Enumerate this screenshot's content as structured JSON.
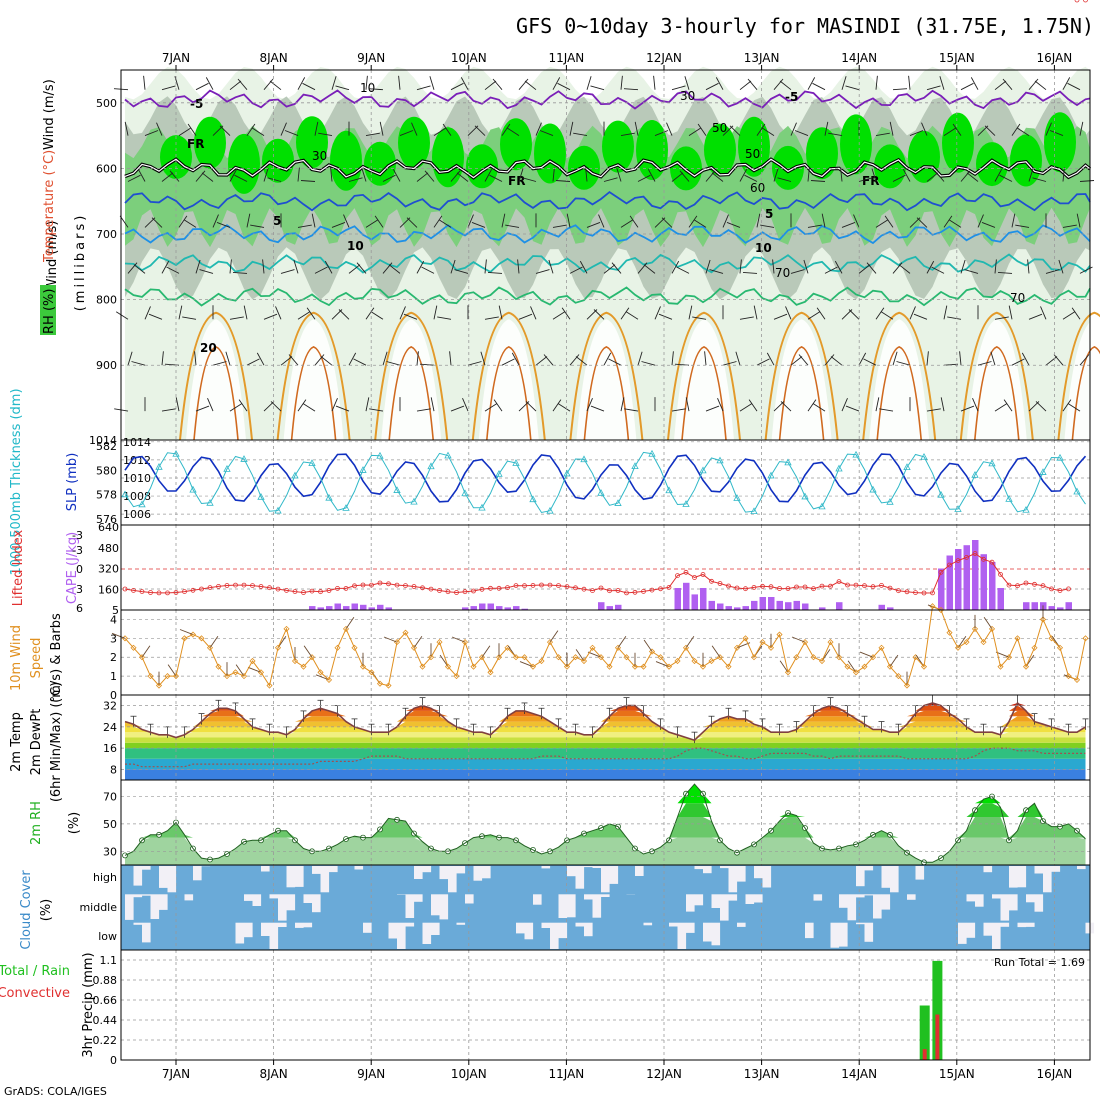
{
  "header": {
    "title": "GFS 0~10day 3-hourly for MASINDI (31.75E, 1.75N)",
    "credit": "GrADS: COLA/IGES"
  },
  "colors": {
    "rh_green": "#00e000",
    "rh_mid": "#7ccf7c",
    "rh_grey": "#b9c9b9",
    "rh_light": "#e8f3e6",
    "freezing": "#000000",
    "iso_minus5": "#7a1fb8",
    "iso_5": "#1f4fd0",
    "iso_10": "#1e90e6",
    "iso_15": "#20b8b0",
    "iso_20": "#28b870",
    "iso_warm": "#e39a2a",
    "slp_line": "#1030c0",
    "thickness_line": "#30b8c8",
    "lifted_index": "#e03030",
    "cape_bar": "#b060f0",
    "wind_speed": "#e09020",
    "temp_line": "#804040",
    "rh2m_fill": "#60c060",
    "cloud_blue": "#6aaad8",
    "cloud_light": "#f2f0f6",
    "precip_total": "#20c020",
    "precip_conv": "#e03030"
  },
  "chart_data": [
    {
      "type": "heatmap",
      "panel": "upper-air",
      "ylabel_parts": [
        "Wind (m/s)",
        "Temperature (°C)",
        "RH (%)"
      ],
      "ylabel_sub": "(millibars)",
      "y_ticks": [
        "500",
        "600",
        "700",
        "800",
        "900",
        "1014"
      ],
      "ylim": [
        1014,
        450
      ],
      "x_labels": [
        "7JAN",
        "8JAN",
        "9JAN",
        "10JAN",
        "11JAN",
        "12JAN",
        "13JAN",
        "14JAN",
        "15JAN",
        "16JAN"
      ],
      "contour_labels": [
        "-5",
        "-5",
        "FR",
        "FR",
        "FR",
        "5",
        "5",
        "10",
        "10",
        "20",
        "10",
        "30",
        "50",
        "50",
        "60",
        "30",
        "70",
        "70"
      ],
      "isotherms": [
        {
          "temp": -5,
          "level_mb": 495
        },
        {
          "temp": 0,
          "level_mb": 600
        },
        {
          "temp": 5,
          "level_mb": 650
        },
        {
          "temp": 10,
          "level_mb": 700
        },
        {
          "temp": 15,
          "level_mb": 745
        },
        {
          "temp": 20,
          "level_mb": 795
        }
      ]
    },
    {
      "type": "line",
      "panel": "slp-thickness",
      "ylabel_left": "1000-500mb Thickness (dm)",
      "ylabel_right": "SLP (mb)",
      "left_ticks": [
        "582",
        "580",
        "578",
        "576"
      ],
      "right_ticks": [
        "1014",
        "1012",
        "1010",
        "1008",
        "1006"
      ],
      "left_lim": [
        575.5,
        582.5
      ],
      "right_lim": [
        1004.8,
        1014.2
      ],
      "series": [
        {
          "axis": "right",
          "base": 1010,
          "amp": 2.2,
          "note": "SLP"
        },
        {
          "axis": "left",
          "base": 579,
          "amp": 2.2,
          "note": "thickness"
        }
      ]
    },
    {
      "type": "bar",
      "panel": "lifted-index-cape",
      "ylabel_left": "Lifted Index",
      "ylabel_right": "CAPE (J/kg)",
      "left_ticks": [
        "-3",
        "-3",
        "0",
        "3",
        "6"
      ],
      "right_ticks": [
        "640",
        "480",
        "320",
        "160",
        "5"
      ],
      "cape_lim": [
        0,
        640
      ],
      "cape_values": [
        0,
        0,
        0,
        0,
        0,
        0,
        0,
        0,
        0,
        0,
        0,
        0,
        0,
        0,
        0,
        0,
        0,
        0,
        0,
        0,
        0,
        0,
        30,
        20,
        30,
        50,
        30,
        50,
        40,
        20,
        40,
        20,
        0,
        0,
        0,
        0,
        0,
        0,
        0,
        0,
        20,
        30,
        50,
        50,
        30,
        20,
        30,
        10,
        0,
        0,
        0,
        0,
        0,
        0,
        0,
        0,
        60,
        30,
        40,
        0,
        0,
        0,
        0,
        0,
        0,
        170,
        210,
        120,
        170,
        70,
        50,
        30,
        20,
        30,
        70,
        100,
        100,
        70,
        60,
        70,
        50,
        0,
        20,
        0,
        60,
        0,
        0,
        0,
        0,
        40,
        20,
        0,
        0,
        0,
        0,
        0,
        320,
        420,
        470,
        500,
        540,
        430,
        370,
        170,
        0,
        0,
        60,
        60,
        60,
        30,
        20,
        60
      ]
    },
    {
      "type": "line",
      "panel": "wind-10m",
      "ylabel": "10m Wind",
      "ylabel_2": "Speed",
      "ylabel_3": "(m/s) & Barbs",
      "y_ticks": [
        "4",
        "3",
        "2",
        "1",
        "0"
      ],
      "ylim": [
        0,
        4.5
      ],
      "series": [
        {
          "name": "",
          "values": [
            3,
            2.5,
            2,
            1,
            0.5,
            1,
            1,
            3,
            3.2,
            3,
            2.5,
            1.5,
            1,
            1.2,
            1,
            1.8,
            1.2,
            0.5,
            2.5,
            3.5,
            1.8,
            1.5,
            2,
            1.2,
            0.8,
            2.5,
            3.5,
            2.5,
            1.5,
            1.2,
            0.6,
            0.5,
            2.8,
            3.3,
            2.5,
            1.5,
            2,
            2.8,
            1.5,
            1,
            2.8,
            1.5,
            2,
            1.2,
            2,
            2.5,
            2,
            2,
            1.5,
            1.8,
            2.8,
            2,
            1.5,
            2,
            1.8,
            2.5,
            2,
            1.5,
            2.5,
            2,
            1.5,
            1.5,
            2.3,
            2,
            1.5,
            1.8,
            2.5,
            1.8,
            1.5,
            1.8,
            2,
            1.5,
            2.5,
            3,
            2,
            2.8,
            2.5,
            3.2,
            1.2,
            2,
            2.8,
            2,
            1.8,
            2.8,
            2,
            1.5,
            1.2,
            1.5,
            2,
            2.5,
            1.5,
            1,
            0.5,
            2,
            1.5,
            4.7,
            4.5,
            3.3,
            2.5,
            2.8,
            3.5,
            2.8,
            3.5,
            1.5,
            2,
            3,
            1.5,
            2.5,
            4,
            3,
            2.5,
            1,
            0.8,
            3
          ]
        }
      ]
    },
    {
      "type": "area",
      "panel": "temperature-2m",
      "ylabel": "2m Temp",
      "ylabel_2": "2m DewPt",
      "ylabel_3": "(6hr Min/Max) (°C)",
      "y_ticks": [
        "32",
        "24",
        "16",
        "8"
      ],
      "ylim": [
        4,
        36
      ],
      "temp_bands": [
        4,
        8,
        12,
        16,
        18,
        20,
        22,
        24,
        26,
        28,
        30,
        32,
        34,
        36
      ],
      "series": [
        {
          "name": "",
          "values": [
            26,
            25,
            23,
            22,
            21,
            21,
            20,
            21,
            23,
            26,
            29,
            31,
            31,
            30,
            27,
            24,
            23,
            22,
            22,
            21,
            23,
            27,
            30,
            31,
            30,
            29,
            26,
            24,
            23,
            22,
            22,
            22,
            24,
            28,
            31,
            32,
            31,
            29,
            26,
            24,
            23,
            22,
            22,
            21,
            24,
            28,
            30,
            30,
            29,
            28,
            26,
            24,
            22,
            22,
            21,
            21,
            24,
            28,
            31,
            32,
            32,
            29,
            26,
            24,
            22,
            21,
            20,
            19,
            22,
            25,
            27,
            28,
            27,
            27,
            25,
            24,
            22,
            22,
            22,
            23,
            26,
            29,
            31,
            32,
            31,
            29,
            27,
            25,
            23,
            23,
            22,
            22,
            25,
            29,
            32,
            33,
            32,
            29,
            27,
            24,
            22,
            22,
            22,
            21,
            26,
            33,
            30,
            26,
            25,
            24,
            23,
            22,
            22,
            24
          ]
        },
        {
          "name": "",
          "values": [
            10,
            10,
            9,
            9,
            9,
            9,
            9,
            9,
            10,
            10,
            10,
            10,
            10,
            10,
            10,
            10,
            10,
            10,
            10,
            10,
            10,
            10,
            10,
            11,
            11,
            11,
            11,
            11,
            12,
            13,
            13,
            13,
            13,
            12,
            12,
            12,
            12,
            12,
            12,
            12,
            12,
            12,
            12,
            12,
            12,
            12,
            12,
            12,
            12,
            13,
            13,
            13,
            12,
            12,
            12,
            12,
            12,
            12,
            12,
            12,
            12,
            12,
            12,
            12,
            12,
            13,
            15,
            16,
            16,
            15,
            14,
            13,
            13,
            12,
            12,
            13,
            14,
            14,
            14,
            14,
            14,
            13,
            13,
            12,
            13,
            13,
            13,
            13,
            13,
            13,
            13,
            13,
            12,
            12,
            12,
            12,
            12,
            12,
            12,
            12,
            13,
            15,
            16,
            16,
            16,
            15,
            15,
            15,
            14,
            14,
            14,
            14,
            14,
            14
          ]
        }
      ]
    },
    {
      "type": "area",
      "panel": "rh-2m",
      "ylabel": "2m RH",
      "ylabel_2": "(%)",
      "y_ticks": [
        "70",
        "50",
        "30"
      ],
      "ylim": [
        20,
        82
      ],
      "series": [
        {
          "name": "",
          "values": [
            27,
            30,
            38,
            42,
            42,
            45,
            51,
            42,
            32,
            25,
            24,
            25,
            28,
            32,
            37,
            38,
            38,
            42,
            45,
            45,
            38,
            32,
            30,
            30,
            32,
            35,
            39,
            41,
            40,
            40,
            46,
            54,
            53,
            52,
            43,
            37,
            32,
            30,
            30,
            32,
            36,
            40,
            41,
            42,
            40,
            40,
            38,
            34,
            31,
            28,
            30,
            33,
            38,
            40,
            43,
            45,
            47,
            50,
            48,
            40,
            32,
            28,
            30,
            33,
            38,
            55,
            72,
            79,
            72,
            52,
            38,
            32,
            29,
            32,
            35,
            40,
            45,
            52,
            58,
            56,
            47,
            36,
            32,
            31,
            32,
            34,
            35,
            38,
            42,
            45,
            42,
            34,
            29,
            25,
            22,
            22,
            25,
            30,
            38,
            45,
            60,
            68,
            70,
            62,
            38,
            45,
            60,
            65,
            52,
            48,
            48,
            50,
            45,
            39
          ]
        }
      ]
    },
    {
      "type": "heatmap",
      "panel": "cloud-cover",
      "ylabel": "Cloud Cover",
      "ylabel_2": "(%)",
      "layer_labels": [
        "high",
        "middle",
        "low"
      ]
    },
    {
      "type": "bar",
      "panel": "precip-3hr",
      "ylabel": "3hr Precip (mm)",
      "ylabel_left_1": "Total / Rain",
      "ylabel_left_2": "Convective",
      "y_ticks": [
        "1.1",
        "0.88",
        "0.66",
        "0.44",
        "0.22",
        "0"
      ],
      "ylim": [
        0,
        1.1
      ],
      "annotation": "Run Total = 1.69",
      "bars": [
        {
          "x": 7.62,
          "total": 0.6,
          "convective": 0.12
        },
        {
          "x": 7.75,
          "total": 1.09,
          "convective": 0.5
        }
      ],
      "x_labels": [
        "7JAN",
        "8JAN",
        "9JAN",
        "10JAN",
        "11JAN",
        "12JAN",
        "13JAN",
        "14JAN",
        "15JAN",
        "16JAN"
      ]
    }
  ]
}
